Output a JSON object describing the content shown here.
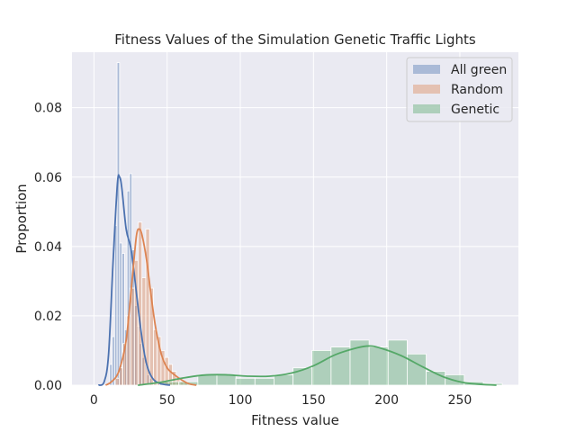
{
  "chart_data": {
    "type": "histogram",
    "title": "Fitness Values of the Simulation Genetic Traffic Lights",
    "xlabel": "Fitness value",
    "ylabel": "Proportion",
    "xlim": [
      -15,
      290
    ],
    "ylim": [
      0,
      0.096
    ],
    "x_ticks": [
      0,
      50,
      100,
      150,
      200,
      250
    ],
    "y_ticks": [
      0.0,
      0.02,
      0.04,
      0.06,
      0.08
    ],
    "x_tick_labels": [
      "0",
      "50",
      "100",
      "150",
      "200",
      "250"
    ],
    "y_tick_labels": [
      "0.00",
      "0.02",
      "0.04",
      "0.06",
      "0.08"
    ],
    "grid": true,
    "legend_position": "top-right",
    "series": [
      {
        "name": "All green",
        "color": "#4c72b0",
        "bin_width": 1.7,
        "bins": [
          [
            9.0,
            0.0
          ],
          [
            10.7,
            0.006
          ],
          [
            12.4,
            0.014
          ],
          [
            14.1,
            0.046
          ],
          [
            15.8,
            0.093
          ],
          [
            17.5,
            0.041
          ],
          [
            19.2,
            0.038
          ],
          [
            20.9,
            0.016
          ],
          [
            22.6,
            0.056
          ],
          [
            24.3,
            0.061
          ],
          [
            26.0,
            0.039
          ],
          [
            27.7,
            0.023
          ],
          [
            29.4,
            0.017
          ],
          [
            31.1,
            0.012
          ],
          [
            32.8,
            0.008
          ],
          [
            34.5,
            0.006
          ],
          [
            36.2,
            0.003
          ],
          [
            37.9,
            0.002
          ]
        ],
        "kde": [
          [
            3,
            0.0
          ],
          [
            7,
            0.001
          ],
          [
            10,
            0.009
          ],
          [
            13,
            0.035
          ],
          [
            16,
            0.058
          ],
          [
            17.5,
            0.06
          ],
          [
            19,
            0.057
          ],
          [
            22,
            0.045
          ],
          [
            25,
            0.04
          ],
          [
            27,
            0.034
          ],
          [
            30,
            0.023
          ],
          [
            33,
            0.013
          ],
          [
            36,
            0.006
          ],
          [
            40,
            0.002
          ],
          [
            45,
            0.0005
          ],
          [
            52,
            0.0
          ]
        ]
      },
      {
        "name": "Random",
        "color": "#dd8452",
        "bin_width": 2.6,
        "bins": [
          [
            12.0,
            0.0
          ],
          [
            14.6,
            0.002
          ],
          [
            17.2,
            0.005
          ],
          [
            19.8,
            0.012
          ],
          [
            22.4,
            0.02
          ],
          [
            25.0,
            0.028
          ],
          [
            27.6,
            0.036
          ],
          [
            30.2,
            0.047
          ],
          [
            32.8,
            0.031
          ],
          [
            35.4,
            0.045
          ],
          [
            38.0,
            0.028
          ],
          [
            40.6,
            0.016
          ],
          [
            43.2,
            0.014
          ],
          [
            45.8,
            0.01
          ],
          [
            48.4,
            0.008
          ],
          [
            51.0,
            0.006
          ],
          [
            53.6,
            0.004
          ],
          [
            56.2,
            0.002
          ],
          [
            58.8,
            0.001
          ],
          [
            61.4,
            0.001
          ]
        ],
        "kde": [
          [
            8,
            0.0
          ],
          [
            12,
            0.001
          ],
          [
            17,
            0.004
          ],
          [
            22,
            0.013
          ],
          [
            26,
            0.03
          ],
          [
            29,
            0.043
          ],
          [
            31,
            0.045
          ],
          [
            33,
            0.043
          ],
          [
            36,
            0.036
          ],
          [
            39,
            0.026
          ],
          [
            42,
            0.017
          ],
          [
            46,
            0.009
          ],
          [
            50,
            0.005
          ],
          [
            55,
            0.003
          ],
          [
            60,
            0.0015
          ],
          [
            65,
            0.0004
          ],
          [
            70,
            0.0
          ]
        ]
      },
      {
        "name": "Genetic",
        "color": "#55a868",
        "bin_width": 13,
        "bins": [
          [
            45,
            0.001
          ],
          [
            58,
            0.001
          ],
          [
            71,
            0.003
          ],
          [
            84,
            0.003
          ],
          [
            97,
            0.002
          ],
          [
            110,
            0.002
          ],
          [
            123,
            0.003
          ],
          [
            136,
            0.005
          ],
          [
            149,
            0.01
          ],
          [
            162,
            0.011
          ],
          [
            175,
            0.013
          ],
          [
            188,
            0.011
          ],
          [
            201,
            0.013
          ],
          [
            214,
            0.009
          ],
          [
            227,
            0.004
          ],
          [
            240,
            0.003
          ],
          [
            253,
            0.001
          ],
          [
            266,
            0.0005
          ]
        ],
        "kde": [
          [
            30,
            0.0
          ],
          [
            45,
            0.0008
          ],
          [
            60,
            0.002
          ],
          [
            75,
            0.0029
          ],
          [
            90,
            0.003
          ],
          [
            105,
            0.0026
          ],
          [
            120,
            0.0026
          ],
          [
            135,
            0.0035
          ],
          [
            150,
            0.0056
          ],
          [
            165,
            0.0088
          ],
          [
            180,
            0.0108
          ],
          [
            188,
            0.0113
          ],
          [
            195,
            0.0108
          ],
          [
            210,
            0.0085
          ],
          [
            225,
            0.0052
          ],
          [
            240,
            0.0022
          ],
          [
            255,
            0.0006
          ],
          [
            275,
            0.0
          ]
        ]
      }
    ]
  }
}
